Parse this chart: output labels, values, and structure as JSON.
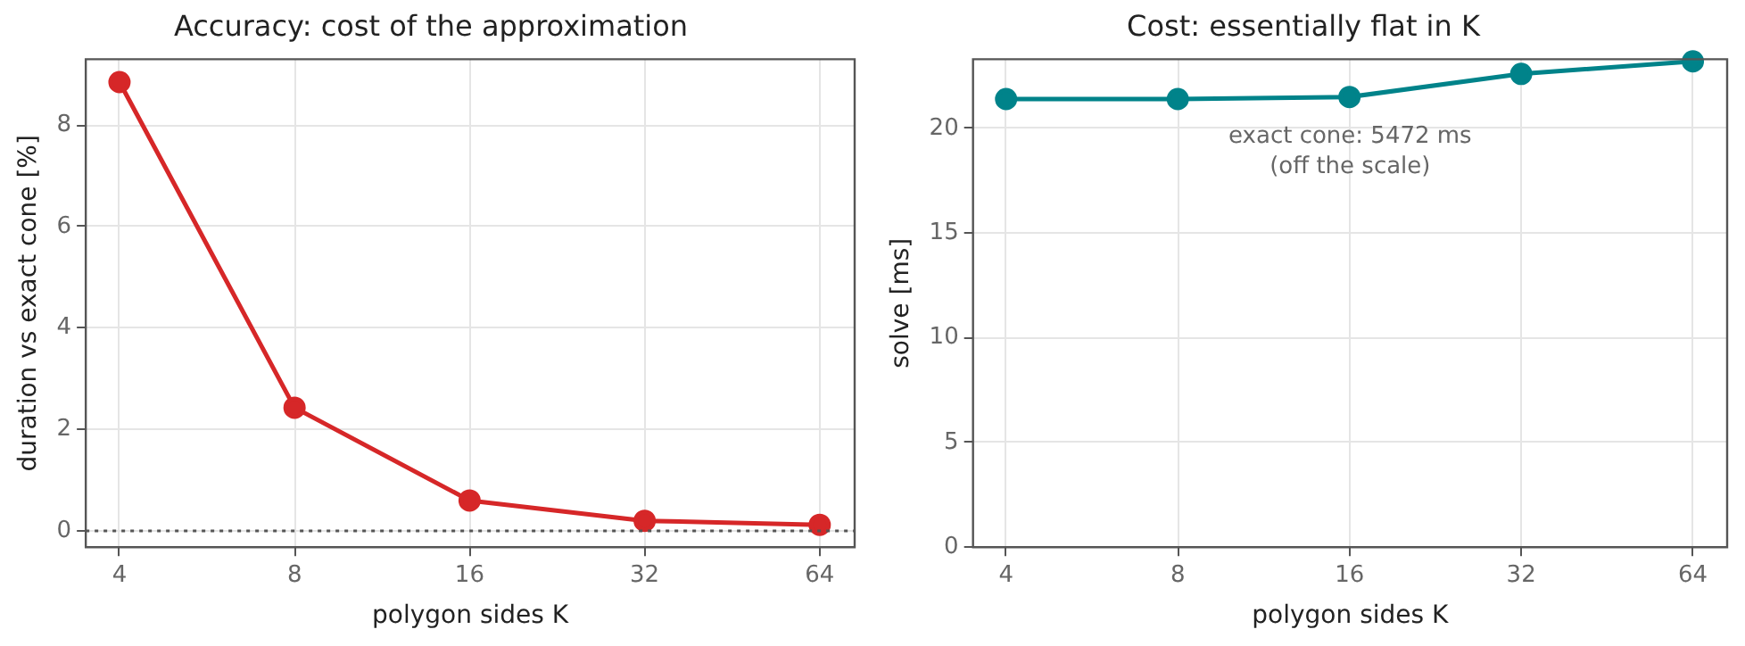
{
  "chart_data": [
    {
      "type": "line",
      "title": "Accuracy: cost of the approximation",
      "xlabel": "polygon sides K",
      "ylabel": "duration vs exact cone [%]",
      "x": [
        4,
        8,
        16,
        32,
        64
      ],
      "series": [
        {
          "color": "#d62728",
          "values": [
            8.85,
            2.43,
            0.6,
            0.2,
            0.12
          ]
        }
      ],
      "log": "x",
      "xlim": [
        3.5,
        73.5
      ],
      "xticks": [
        4,
        8,
        16,
        32,
        64
      ],
      "ylim": [
        -0.32,
        9.3
      ],
      "yticks": [
        0,
        2,
        4,
        6,
        8
      ],
      "grid": true,
      "legend": false,
      "marker": "circle",
      "line_style": "solid",
      "ref_lines": [
        {
          "axis": "y",
          "value": 0,
          "color": "#555555",
          "line_style": "dotted"
        }
      ]
    },
    {
      "type": "line",
      "title": "Cost: essentially flat in K",
      "xlabel": "polygon sides K",
      "ylabel": "solve [ms]",
      "x": [
        4,
        8,
        16,
        32,
        64
      ],
      "series": [
        {
          "color": "#00838a",
          "values": [
            21.4,
            21.4,
            21.5,
            22.6,
            23.2
          ]
        }
      ],
      "log": "x",
      "xlim": [
        3.5,
        73.5
      ],
      "xticks": [
        4,
        8,
        16,
        32,
        64
      ],
      "ylim": [
        0,
        23.3
      ],
      "yticks": [
        0,
        5,
        10,
        15,
        20
      ],
      "grid": true,
      "legend": false,
      "marker": "circle",
      "line_style": "solid",
      "annotations": [
        "exact cone: 5472 ms\n(off the scale)"
      ]
    }
  ]
}
